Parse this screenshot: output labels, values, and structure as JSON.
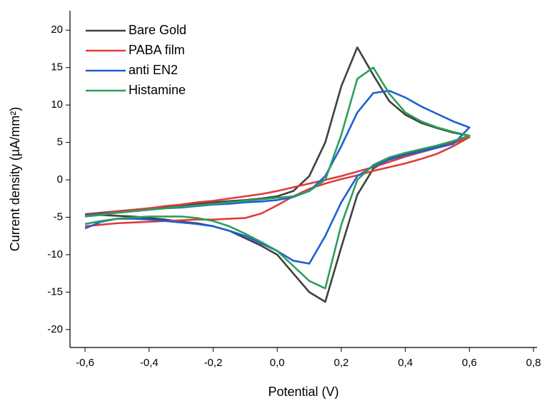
{
  "chart_data": {
    "type": "line",
    "x_label": "Potential (V)",
    "y_label": "Current density (µA/mm²)",
    "x": [
      -0.6,
      -0.55,
      -0.5,
      -0.45,
      -0.4,
      -0.35,
      -0.3,
      -0.25,
      -0.2,
      -0.15,
      -0.1,
      -0.05,
      0,
      0.05,
      0.1,
      0.15,
      0.2,
      0.25,
      0.3,
      0.35,
      0.4,
      0.45,
      0.5,
      0.55,
      0.6,
      0.55,
      0.5,
      0.45,
      0.4,
      0.35,
      0.3,
      0.25,
      0.2,
      0.15,
      0.1,
      0.05,
      0,
      -0.05,
      -0.1,
      -0.15,
      -0.2,
      -0.25,
      -0.3,
      -0.35,
      -0.4,
      -0.45,
      -0.5,
      -0.55,
      -0.6
    ],
    "series": [
      {
        "name": "Bare Gold",
        "color": "#404040",
        "values": [
          -4.6,
          -4.4,
          -4.2,
          -4.0,
          -3.8,
          -3.6,
          -3.4,
          -3.2,
          -3.0,
          -2.85,
          -2.7,
          -2.5,
          -2.2,
          -1.5,
          0.5,
          5,
          12.5,
          17.7,
          14,
          10.5,
          8.7,
          7.6,
          6.9,
          6.3,
          5.9,
          5.0,
          4.5,
          4.0,
          3.5,
          2.8,
          1.5,
          -2,
          -9,
          -16.3,
          -15,
          -12.5,
          -10,
          -8.8,
          -7.8,
          -6.8,
          -6.2,
          -5.8,
          -5.6,
          -5.3,
          -5.1,
          -4.9,
          -4.8,
          -4.7,
          -4.6
        ]
      },
      {
        "name": "PABA film",
        "color": "#e03c3c",
        "values": [
          -4.7,
          -4.5,
          -4.2,
          -4.0,
          -3.8,
          -3.5,
          -3.3,
          -3.0,
          -2.8,
          -2.5,
          -2.2,
          -1.9,
          -1.5,
          -1.0,
          -0.5,
          0,
          0.5,
          1.1,
          1.7,
          2.4,
          3.1,
          3.7,
          4.3,
          4.9,
          5.7,
          4.5,
          3.5,
          2.8,
          2.2,
          1.7,
          1.2,
          0.6,
          0.1,
          -0.5,
          -1.2,
          -2.2,
          -3.4,
          -4.5,
          -5.1,
          -5.2,
          -5.3,
          -5.3,
          -5.4,
          -5.5,
          -5.6,
          -5.7,
          -5.8,
          -6.0,
          -6.2
        ]
      },
      {
        "name": "anti EN2",
        "color": "#1f5fd6",
        "values": [
          -4.8,
          -4.6,
          -4.4,
          -4.2,
          -4.0,
          -3.8,
          -3.7,
          -3.5,
          -3.3,
          -3.2,
          -3.0,
          -2.9,
          -2.7,
          -2.3,
          -1.5,
          0.5,
          4.5,
          9,
          11.6,
          11.9,
          11,
          9.8,
          8.8,
          7.8,
          7.0,
          4.8,
          4.3,
          3.8,
          3.3,
          2.7,
          1.8,
          0.5,
          -3,
          -7.5,
          -11.2,
          -10.8,
          -9.5,
          -8.5,
          -7.5,
          -6.8,
          -6.2,
          -5.9,
          -5.7,
          -5.5,
          -5.3,
          -5.2,
          -5.2,
          -5.6,
          -6.5
        ]
      },
      {
        "name": "Histamine",
        "color": "#2ca05a",
        "values": [
          -4.9,
          -4.7,
          -4.4,
          -4.2,
          -4.0,
          -3.8,
          -3.6,
          -3.4,
          -3.2,
          -3.0,
          -2.8,
          -2.6,
          -2.4,
          -2.2,
          -1.5,
          0,
          6,
          13.5,
          15,
          11.5,
          9,
          7.8,
          7,
          6.4,
          5.9,
          5.2,
          4.6,
          4.1,
          3.6,
          3.0,
          2.0,
          0,
          -6,
          -14.5,
          -13.5,
          -11.5,
          -9.5,
          -8.3,
          -7.2,
          -6.2,
          -5.5,
          -5.1,
          -4.9,
          -4.9,
          -4.9,
          -5.0,
          -5.2,
          -5.5,
          -5.9
        ]
      }
    ],
    "xlim": [
      -0.647,
      0.811
    ],
    "ylim": [
      -22.4,
      22.6
    ],
    "xticks": [
      {
        "value": -0.6,
        "label": "-0,6"
      },
      {
        "value": -0.4,
        "label": "-0,4"
      },
      {
        "value": -0.2,
        "label": "-0,2"
      },
      {
        "value": 0,
        "label": "0,0"
      },
      {
        "value": 0.2,
        "label": "0,2"
      },
      {
        "value": 0.4,
        "label": "0,4"
      },
      {
        "value": 0.6,
        "label": "0,6"
      },
      {
        "value": 0.8,
        "label": "0,8"
      }
    ],
    "yticks": [
      -20,
      -15,
      -10,
      -5,
      0,
      5,
      10,
      15,
      20
    ],
    "legend": "top-left"
  }
}
